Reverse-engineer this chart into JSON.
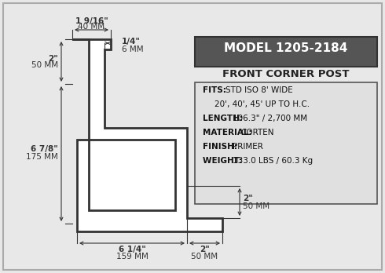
{
  "bg_color": "#e8e8e8",
  "border_color": "#333333",
  "line_color": "#333333",
  "model_box_bg": "#555555",
  "model_text": "MODEL 1205-2184",
  "subtitle": "FRONT CORNER POST",
  "info_lines": [
    [
      "FITS: ",
      "STD ISO 8' WIDE"
    ],
    [
      "",
      "20', 40', 45' UP TO H.C."
    ],
    [
      "LENGTH: ",
      "106.3\" / 2,700 MM"
    ],
    [
      "MATERIAL: ",
      "CORTEN"
    ],
    [
      "FINISH: ",
      "PRIMER"
    ],
    [
      "WEIGHT: ",
      "133.0 LBS / 60.3 Kg"
    ]
  ],
  "dim_top_label1": "1 9/16\"",
  "dim_top_label1b": "40 MM",
  "dim_top_label2": "1/4\"",
  "dim_top_label2b": "6 MM",
  "dim_left_top_label": "2\"",
  "dim_left_top_labelb": "50 MM",
  "dim_left_main_label": "6 7/8\"",
  "dim_left_main_labelb": "175 MM",
  "dim_bottom_left_label": "6 1/4\"",
  "dim_bottom_left_labelb": "159 MM",
  "dim_bottom_right_label": "2\"",
  "dim_bottom_right_labelb": "50 MM",
  "dim_right_top_label": "2\"",
  "dim_right_top_labelb": "50 MM"
}
